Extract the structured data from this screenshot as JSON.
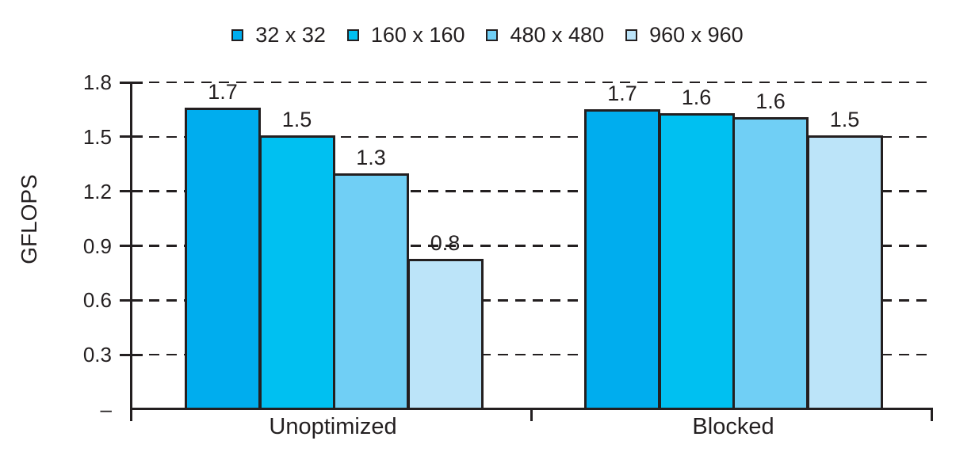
{
  "figure": {
    "background": "#ffffff",
    "ink_color": "#231f20"
  },
  "legend": {
    "position": "top-center",
    "items": [
      {
        "label": "32 x 32",
        "color": "#00adee"
      },
      {
        "label": "160 x 160",
        "color": "#00c0f1"
      },
      {
        "label": "480 x 480",
        "color": "#70cff5"
      },
      {
        "label": "960 x 960",
        "color": "#bce4f9"
      }
    ]
  },
  "chart_data": {
    "type": "bar",
    "title": "",
    "xlabel": "",
    "ylabel": "GFLOPS",
    "ylim": [
      0,
      1.8
    ],
    "ytick_step": 0.3,
    "yticks": [
      0.3,
      0.6,
      0.9,
      1.2,
      1.5,
      1.8
    ],
    "ytick_labels": [
      "0.3",
      "0.6",
      "0.9",
      "1.2",
      "1.5",
      "1.8"
    ],
    "zero_tick_label": "–",
    "grid": "horizontal dashed",
    "legend_position": "top center",
    "bar_value_labels_shown": true,
    "categories": [
      "Unoptimized",
      "Blocked"
    ],
    "series": [
      {
        "name": "32 x 32",
        "color": "#00adee",
        "values": [
          1.7,
          1.7
        ],
        "value_labels": [
          "1.7",
          "1.7"
        ],
        "drawn_heights": [
          1.66,
          1.65
        ]
      },
      {
        "name": "160 x 160",
        "color": "#00c0f1",
        "values": [
          1.5,
          1.6
        ],
        "value_labels": [
          "1.5",
          "1.6"
        ],
        "drawn_heights": [
          1.51,
          1.63
        ]
      },
      {
        "name": "480 x 480",
        "color": "#70cff5",
        "values": [
          1.3,
          1.6
        ],
        "value_labels": [
          "1.3",
          "1.6"
        ],
        "drawn_heights": [
          1.3,
          1.61
        ]
      },
      {
        "name": "960 x 960",
        "color": "#bce4f9",
        "values": [
          0.8,
          1.5
        ],
        "value_labels": [
          "0.8",
          "1.5"
        ],
        "drawn_heights": [
          0.83,
          1.51
        ]
      }
    ]
  }
}
